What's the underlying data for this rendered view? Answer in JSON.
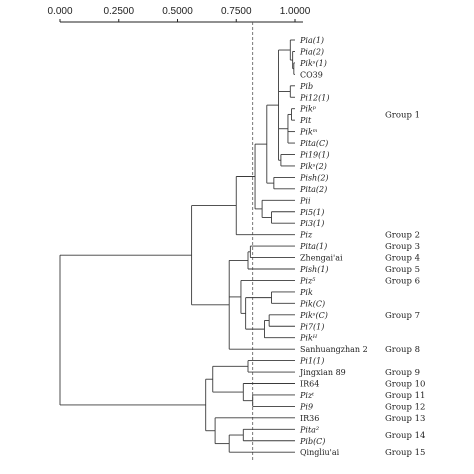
{
  "axis": {
    "ticks": [
      "0.000",
      "0.2500",
      "0.5000",
      "0.7500",
      "1.0000"
    ],
    "tick_values": [
      0,
      0.25,
      0.5,
      0.75,
      1.0
    ],
    "cutoff_value": 0.82
  },
  "leaves": [
    {
      "label": "Pia(1)",
      "italic": true
    },
    {
      "label": "Pia(2)",
      "italic": true
    },
    {
      "label": "Pikˢ(1)",
      "italic": true
    },
    {
      "label": "CO39",
      "italic": false
    },
    {
      "label": "Pib",
      "italic": true
    },
    {
      "label": "Pi12(1)",
      "italic": true
    },
    {
      "label": "Pikᵖ",
      "italic": true
    },
    {
      "label": "Pit",
      "italic": true
    },
    {
      "label": "Pikᵐ",
      "italic": true
    },
    {
      "label": "Pita(C)",
      "italic": true
    },
    {
      "label": "Pi19(1)",
      "italic": true
    },
    {
      "label": "Pikˢ(2)",
      "italic": true
    },
    {
      "label": "Pish(2)",
      "italic": true
    },
    {
      "label": "Pita(2)",
      "italic": true
    },
    {
      "label": "Pii",
      "italic": true
    },
    {
      "label": "Pi5(1)",
      "italic": true
    },
    {
      "label": "Pi3(1)",
      "italic": true
    },
    {
      "label": "Piz",
      "italic": true
    },
    {
      "label": "Pita(1)",
      "italic": true
    },
    {
      "label": "Zhengai'ai",
      "italic": false
    },
    {
      "label": "Pish(1)",
      "italic": true
    },
    {
      "label": "Piz⁵",
      "italic": true
    },
    {
      "label": "Pik",
      "italic": true
    },
    {
      "label": "Pik(C)",
      "italic": true
    },
    {
      "label": "Pikˢ(C)",
      "italic": true
    },
    {
      "label": "Pi7(1)",
      "italic": true
    },
    {
      "label": "Pikᴴ",
      "italic": true
    },
    {
      "label": "Sanhuangzhan 2",
      "italic": false
    },
    {
      "label": "Pi1(1)",
      "italic": true
    },
    {
      "label": "Jingxian 89",
      "italic": false
    },
    {
      "label": "IR64",
      "italic": false
    },
    {
      "label": "Pizᵗ",
      "italic": true
    },
    {
      "label": "Pi9",
      "italic": true
    },
    {
      "label": "IR36",
      "italic": false
    },
    {
      "label": "Pita²",
      "italic": true
    },
    {
      "label": "Pib(C)",
      "italic": true
    },
    {
      "label": "Qingliu'ai",
      "italic": false
    }
  ],
  "groups": [
    {
      "label": "Group 1",
      "row": 6.5
    },
    {
      "label": "Group 2",
      "row": 17
    },
    {
      "label": "Group 3",
      "row": 18
    },
    {
      "label": "Group 4",
      "row": 19
    },
    {
      "label": "Group 5",
      "row": 20
    },
    {
      "label": "Group 6",
      "row": 21
    },
    {
      "label": "Group 7",
      "row": 24
    },
    {
      "label": "Group 8",
      "row": 27
    },
    {
      "label": "Group 9",
      "row": 29
    },
    {
      "label": "Group 10",
      "row": 30
    },
    {
      "label": "Group 11",
      "row": 31
    },
    {
      "label": "Group 12",
      "row": 32
    },
    {
      "label": "Group 13",
      "row": 33
    },
    {
      "label": "Group 14",
      "row": 34.5
    },
    {
      "label": "Group 15",
      "row": 36
    }
  ]
}
